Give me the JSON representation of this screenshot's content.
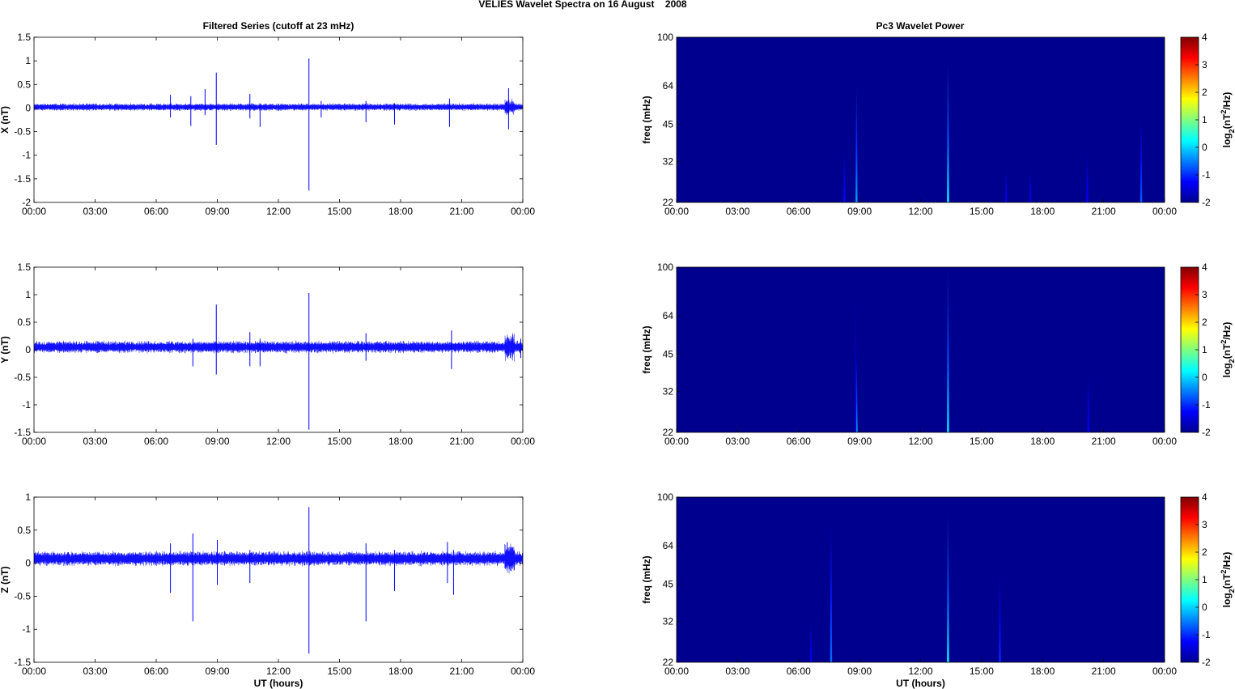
{
  "figure": {
    "title": "VELIES Wavelet Spectra on 16 August    2008",
    "left_title": "Filtered Series (cutoff at 23 mHz)",
    "right_title": "Pc3 Wavelet Power"
  },
  "colors": {
    "series": "#0000ff",
    "heatmap_background": "#00008f",
    "axis": "#000000"
  },
  "chart_data": [
    {
      "type": "line",
      "series": [
        {
          "name": "X (nT)"
        }
      ],
      "ylabel": "X (nT)",
      "xlabel": "",
      "xlim": [
        0,
        24
      ],
      "ylim": [
        -2,
        1.5
      ],
      "x_ticks": [
        0,
        3,
        6,
        9,
        12,
        15,
        18,
        21,
        24
      ],
      "x_tick_labels": [
        "00:00",
        "03:00",
        "06:00",
        "09:00",
        "12:00",
        "15:00",
        "18:00",
        "21:00",
        "00:00"
      ],
      "y_ticks": [
        1.5,
        1,
        0.5,
        0,
        -0.5,
        -1,
        -1.5,
        -2
      ],
      "y_tick_labels": [
        "1.5",
        "1",
        "0.5",
        "0",
        "-0.5",
        "-1",
        "-1.5",
        "-2"
      ],
      "baseline": 0.02,
      "noise_amplitude": 0.07,
      "spikes": [
        {
          "t": 6.7,
          "min": -0.2,
          "max": 0.28
        },
        {
          "t": 7.7,
          "min": -0.38,
          "max": 0.25
        },
        {
          "t": 8.4,
          "min": -0.15,
          "max": 0.4
        },
        {
          "t": 8.95,
          "min": -0.78,
          "max": 0.75
        },
        {
          "t": 10.6,
          "min": -0.22,
          "max": 0.3
        },
        {
          "t": 11.1,
          "min": -0.4,
          "max": 0.1
        },
        {
          "t": 13.5,
          "min": -1.75,
          "max": 1.05
        },
        {
          "t": 14.1,
          "min": -0.2,
          "max": 0.15
        },
        {
          "t": 16.3,
          "min": -0.3,
          "max": 0.15
        },
        {
          "t": 17.7,
          "min": -0.35,
          "max": 0.1
        },
        {
          "t": 20.4,
          "min": -0.4,
          "max": 0.2
        },
        {
          "t": 23.3,
          "min": -0.45,
          "max": 0.42
        }
      ]
    },
    {
      "type": "line",
      "series": [
        {
          "name": "Y (nT)"
        }
      ],
      "ylabel": "Y (nT)",
      "xlabel": "",
      "xlim": [
        0,
        24
      ],
      "ylim": [
        -1.5,
        1.5
      ],
      "x_ticks": [
        0,
        3,
        6,
        9,
        12,
        15,
        18,
        21,
        24
      ],
      "x_tick_labels": [
        "00:00",
        "03:00",
        "06:00",
        "09:00",
        "12:00",
        "15:00",
        "18:00",
        "21:00",
        "00:00"
      ],
      "y_ticks": [
        1.5,
        1,
        0.5,
        0,
        -0.5,
        -1,
        -1.5
      ],
      "y_tick_labels": [
        "1.5",
        "1",
        "0.5",
        "0",
        "-0.5",
        "-1",
        "-1.5"
      ],
      "baseline": 0.05,
      "noise_amplitude": 0.1,
      "spikes": [
        {
          "t": 7.8,
          "min": -0.3,
          "max": 0.2
        },
        {
          "t": 8.95,
          "min": -0.45,
          "max": 0.82
        },
        {
          "t": 10.6,
          "min": -0.3,
          "max": 0.32
        },
        {
          "t": 11.1,
          "min": -0.3,
          "max": 0.2
        },
        {
          "t": 13.5,
          "min": -1.45,
          "max": 1.03
        },
        {
          "t": 16.3,
          "min": -0.2,
          "max": 0.3
        },
        {
          "t": 20.5,
          "min": -0.35,
          "max": 0.35
        },
        {
          "t": 23.9,
          "min": -0.15,
          "max": 0.2
        }
      ]
    },
    {
      "type": "line",
      "series": [
        {
          "name": "Z (nT)"
        }
      ],
      "ylabel": "Z (nT)",
      "xlabel": "UT (hours)",
      "xlim": [
        0,
        24
      ],
      "ylim": [
        -1.5,
        1
      ],
      "x_ticks": [
        0,
        3,
        6,
        9,
        12,
        15,
        18,
        21,
        24
      ],
      "x_tick_labels": [
        "00:00",
        "03:00",
        "06:00",
        "09:00",
        "12:00",
        "15:00",
        "18:00",
        "21:00",
        "00:00"
      ],
      "y_ticks": [
        1,
        0.5,
        0,
        -0.5,
        -1,
        -1.5
      ],
      "y_tick_labels": [
        "1",
        "0.5",
        "0",
        "-0.5",
        "-1",
        "-1.5"
      ],
      "baseline": 0.07,
      "noise_amplitude": 0.1,
      "spikes": [
        {
          "t": 6.7,
          "min": -0.45,
          "max": 0.3
        },
        {
          "t": 7.8,
          "min": -0.88,
          "max": 0.45
        },
        {
          "t": 9.0,
          "min": -0.33,
          "max": 0.35
        },
        {
          "t": 10.6,
          "min": -0.3,
          "max": 0.2
        },
        {
          "t": 13.5,
          "min": -1.37,
          "max": 0.85
        },
        {
          "t": 16.3,
          "min": -0.88,
          "max": 0.3
        },
        {
          "t": 17.7,
          "min": -0.42,
          "max": 0.2
        },
        {
          "t": 20.3,
          "min": -0.3,
          "max": 0.32
        },
        {
          "t": 20.6,
          "min": -0.48,
          "max": 0.2
        }
      ]
    },
    {
      "type": "heatmap",
      "ylabel": "freq (mHz)",
      "xlabel": "",
      "xlim": [
        0,
        24
      ],
      "ylim": [
        22,
        100
      ],
      "x_tick_labels": [
        "00:00",
        "03:00",
        "06:00",
        "09:00",
        "12:00",
        "15:00",
        "18:00",
        "21:00",
        "00:00"
      ],
      "y_ticks": [
        100,
        64,
        45,
        32,
        22
      ],
      "y_tick_labels": [
        "100",
        "64",
        "45",
        "32",
        "22"
      ],
      "colorbar": {
        "label": "log2(nT^2/Hz)",
        "label_base": "log",
        "label_sub": "2",
        "label_open": "(nT",
        "label_sup": "2",
        "label_close": "/Hz)",
        "range": [
          -2,
          4
        ],
        "ticks": [
          4,
          3,
          2,
          1,
          0,
          -1,
          -2
        ],
        "tick_labels": [
          "4",
          "3",
          "2",
          "1",
          "0",
          "-1",
          "-2"
        ]
      },
      "features": [
        {
          "t": 8.25,
          "fmax": 35,
          "peak": -1.2,
          "w": 0.06
        },
        {
          "t": 8.85,
          "fmax": 65,
          "peak": -0.3,
          "w": 0.08
        },
        {
          "t": 13.35,
          "fmax": 80,
          "peak": 0.3,
          "w": 0.08
        },
        {
          "t": 16.2,
          "fmax": 30,
          "peak": -1.4,
          "w": 0.06
        },
        {
          "t": 17.4,
          "fmax": 30,
          "peak": -1.4,
          "w": 0.06
        },
        {
          "t": 20.2,
          "fmax": 35,
          "peak": -1.3,
          "w": 0.06
        },
        {
          "t": 22.85,
          "fmax": 47,
          "peak": -0.7,
          "w": 0.1
        }
      ]
    },
    {
      "type": "heatmap",
      "ylabel": "freq (mHz)",
      "xlabel": "",
      "xlim": [
        0,
        24
      ],
      "ylim": [
        22,
        100
      ],
      "x_tick_labels": [
        "00:00",
        "03:00",
        "06:00",
        "09:00",
        "12:00",
        "15:00",
        "18:00",
        "21:00",
        "00:00"
      ],
      "y_ticks": [
        100,
        64,
        45,
        32,
        22
      ],
      "y_tick_labels": [
        "100",
        "64",
        "45",
        "32",
        "22"
      ],
      "colorbar": {
        "label": "log2(nT^2/Hz)",
        "label_base": "log",
        "label_sub": "2",
        "label_open": "(nT",
        "label_sup": "2",
        "label_close": "/Hz)",
        "range": [
          -2,
          4
        ],
        "ticks": [
          4,
          3,
          2,
          1,
          0,
          -1,
          -2
        ],
        "tick_labels": [
          "4",
          "3",
          "2",
          "1",
          "0",
          "-1",
          "-2"
        ]
      },
      "features": [
        {
          "t": 8.85,
          "fmax": 42,
          "peak": 0.0,
          "w": 0.08
        },
        {
          "t": 8.8,
          "fmax": 80,
          "peak": -1.5,
          "w": 0.05
        },
        {
          "t": 13.35,
          "fmax": 98,
          "peak": 0.2,
          "w": 0.08
        },
        {
          "t": 20.25,
          "fmax": 38,
          "peak": -1.3,
          "w": 0.06
        }
      ]
    },
    {
      "type": "heatmap",
      "ylabel": "freq (mHz)",
      "xlabel": "UT (hours)",
      "xlim": [
        0,
        24
      ],
      "ylim": [
        22,
        100
      ],
      "x_tick_labels": [
        "00:00",
        "03:00",
        "06:00",
        "09:00",
        "12:00",
        "15:00",
        "18:00",
        "21:00",
        "00:00"
      ],
      "y_ticks": [
        100,
        64,
        45,
        32,
        22
      ],
      "y_tick_labels": [
        "100",
        "64",
        "45",
        "32",
        "22"
      ],
      "colorbar": {
        "label": "log2(nT^2/Hz)",
        "label_base": "log",
        "label_sub": "2",
        "label_open": "(nT",
        "label_sup": "2",
        "label_close": "/Hz)",
        "range": [
          -2,
          4
        ],
        "ticks": [
          4,
          3,
          2,
          1,
          0,
          -1,
          -2
        ],
        "tick_labels": [
          "4",
          "3",
          "2",
          "1",
          "0",
          "-1",
          "-2"
        ]
      },
      "features": [
        {
          "t": 6.6,
          "fmax": 32,
          "peak": -1.3,
          "w": 0.06
        },
        {
          "t": 7.6,
          "fmax": 80,
          "peak": -0.6,
          "w": 0.08
        },
        {
          "t": 13.35,
          "fmax": 85,
          "peak": 0.3,
          "w": 0.08
        },
        {
          "t": 15.9,
          "fmax": 50,
          "peak": -1.0,
          "w": 0.07
        }
      ]
    }
  ]
}
